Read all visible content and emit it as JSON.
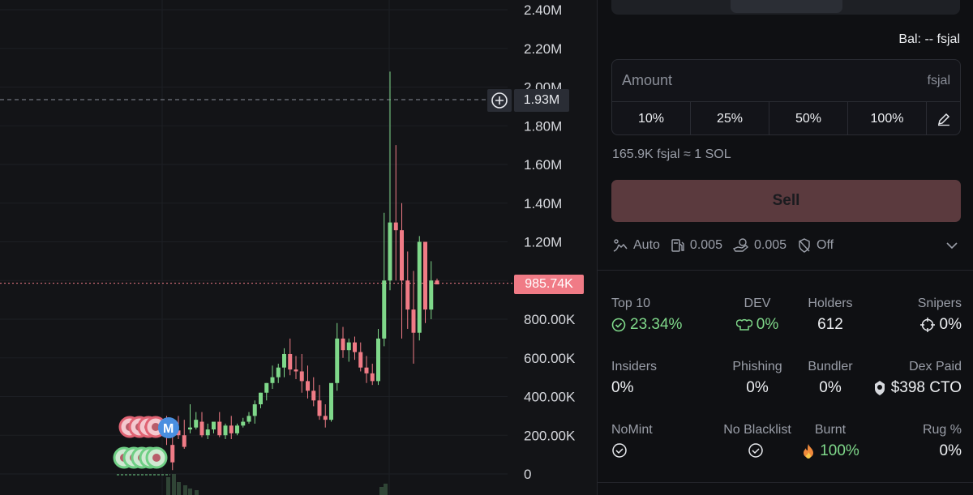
{
  "chart": {
    "axis_labels": [
      "2.40M",
      "2.20M",
      "2.00M",
      "1.80M",
      "1.60M",
      "1.40M",
      "1.20M",
      "1.00M",
      "800.00K",
      "600.00K",
      "400.00K",
      "200.00K",
      "0"
    ],
    "crosshair_price": "1.93M",
    "current_price": "985.74K",
    "colors": {
      "up": "#7fd88a",
      "down": "#f07b86",
      "marker_blue": "#4a8fe0"
    },
    "markers": {
      "dev_label": "M"
    }
  },
  "chart_data": {
    "type": "candlestick",
    "y_unit": "market cap",
    "ylim": [
      0,
      2400000
    ],
    "candles": [
      [
        215000,
        300000,
        190000,
        150000
      ],
      [
        150000,
        225000,
        60000,
        20000
      ],
      [
        225000,
        300000,
        200000,
        180000
      ],
      [
        200000,
        280000,
        140000,
        130000
      ],
      [
        230000,
        360000,
        240000,
        210000
      ],
      [
        240000,
        320000,
        280000,
        230000
      ],
      [
        270000,
        320000,
        200000,
        190000
      ],
      [
        200000,
        260000,
        230000,
        180000
      ],
      [
        230000,
        260000,
        270000,
        210000
      ],
      [
        270000,
        320000,
        200000,
        190000
      ],
      [
        200000,
        260000,
        250000,
        180000
      ],
      [
        250000,
        300000,
        210000,
        180000
      ],
      [
        210000,
        260000,
        250000,
        200000
      ],
      [
        250000,
        290000,
        270000,
        240000
      ],
      [
        270000,
        320000,
        300000,
        260000
      ],
      [
        300000,
        380000,
        360000,
        260000
      ],
      [
        360000,
        420000,
        420000,
        340000
      ],
      [
        420000,
        470000,
        470000,
        380000
      ],
      [
        470000,
        560000,
        500000,
        440000
      ],
      [
        500000,
        570000,
        550000,
        470000
      ],
      [
        550000,
        650000,
        620000,
        500000
      ],
      [
        620000,
        700000,
        540000,
        510000
      ],
      [
        540000,
        610000,
        530000,
        490000
      ],
      [
        530000,
        620000,
        480000,
        420000
      ],
      [
        480000,
        560000,
        430000,
        390000
      ],
      [
        430000,
        500000,
        380000,
        350000
      ],
      [
        380000,
        460000,
        300000,
        280000
      ],
      [
        300000,
        360000,
        280000,
        240000
      ],
      [
        280000,
        340000,
        470000,
        270000
      ],
      [
        470000,
        780000,
        700000,
        430000
      ],
      [
        700000,
        760000,
        640000,
        600000
      ],
      [
        640000,
        700000,
        680000,
        580000
      ],
      [
        680000,
        710000,
        630000,
        590000
      ],
      [
        630000,
        680000,
        550000,
        530000
      ],
      [
        550000,
        610000,
        520000,
        470000
      ],
      [
        520000,
        570000,
        480000,
        460000
      ],
      [
        480000,
        750000,
        700000,
        460000
      ],
      [
        700000,
        1350000,
        1000000,
        660000
      ],
      [
        1000000,
        2080000,
        1300000,
        950000
      ],
      [
        1300000,
        1700000,
        1260000,
        1000000
      ],
      [
        1260000,
        1400000,
        1000000,
        700000
      ],
      [
        1000000,
        1150000,
        850000,
        750000
      ],
      [
        850000,
        1050000,
        730000,
        570000
      ],
      [
        730000,
        1230000,
        1200000,
        690000
      ],
      [
        1200000,
        1190000,
        850000,
        780000
      ],
      [
        850000,
        1100000,
        1000000,
        800000
      ],
      [
        1000000,
        1010000,
        980000,
        980000
      ]
    ]
  },
  "panel": {
    "balance": "Bal: -- fsjal",
    "amount_placeholder": "Amount",
    "amount_unit": "fsjal",
    "pct_buttons": [
      "10%",
      "25%",
      "50%",
      "100%"
    ],
    "rate": "165.9K fsjal ≈ 1 SOL",
    "sell_label": "Sell",
    "settings": {
      "slippage": "Auto",
      "priority": "0.005",
      "tip": "0.005",
      "mev": "Off"
    }
  },
  "stats": {
    "top10": {
      "label": "Top 10",
      "value": "23.34%"
    },
    "dev": {
      "label": "DEV",
      "value": "0%"
    },
    "holders": {
      "label": "Holders",
      "value": "612"
    },
    "snipers": {
      "label": "Snipers",
      "value": "0%"
    },
    "insiders": {
      "label": "Insiders",
      "value": "0%"
    },
    "phishing": {
      "label": "Phishing",
      "value": "0%"
    },
    "bundler": {
      "label": "Bundler",
      "value": "0%"
    },
    "dexpaid": {
      "label": "Dex Paid",
      "value": "$398 CTO"
    },
    "nomint": {
      "label": "NoMint"
    },
    "noblacklist": {
      "label": "No Blacklist"
    },
    "burnt": {
      "label": "Burnt",
      "value": "100%"
    },
    "rug": {
      "label": "Rug %",
      "value": "0%"
    }
  }
}
